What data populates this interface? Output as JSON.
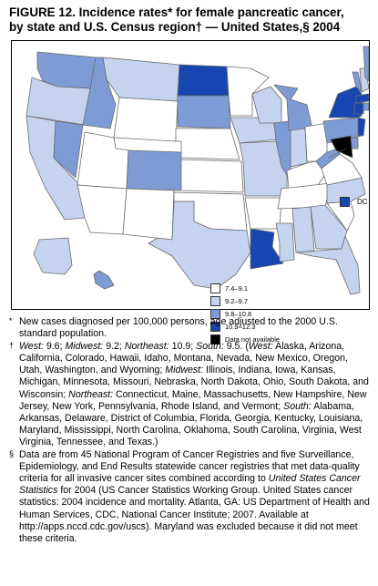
{
  "title": {
    "line1": "FIGURE 12. Incidence rates* for female pancreatic cancer,",
    "line2": "by state and U.S. Census region† — United States,§ 2004"
  },
  "legend": {
    "items": [
      {
        "label": "7.4–9.1",
        "color": "#ffffff"
      },
      {
        "label": "9.2–9.7",
        "color": "#c6d3ee"
      },
      {
        "label": "9.8–10.8",
        "color": "#7f9bd6"
      },
      {
        "label": "10.9–12.3",
        "color": "#1746b0"
      },
      {
        "label": "Data not available",
        "color": "#000000"
      }
    ],
    "dc_label": "DC"
  },
  "map_data": {
    "category_colors": [
      "#ffffff",
      "#c6d3ee",
      "#7f9bd6",
      "#1746b0",
      "#000000"
    ],
    "states": {
      "WA": 2,
      "OR": 1,
      "CA": 1,
      "NV": 2,
      "ID": 2,
      "MT": 1,
      "WY": 0,
      "UT": 0,
      "AZ": 0,
      "CO": 2,
      "NM": 0,
      "ND": 3,
      "SD": 2,
      "NE": 0,
      "KS": 0,
      "OK": 0,
      "TX": 1,
      "MN": 0,
      "IA": 1,
      "MO": 1,
      "AR": 0,
      "LA": 3,
      "WI": 1,
      "IL": 2,
      "MS": 1,
      "MI": 2,
      "IN": 1,
      "OH": 0,
      "KY": 0,
      "TN": 0,
      "AL": 1,
      "GA": 1,
      "FL": 1,
      "SC": 0,
      "NC": 1,
      "VA": 0,
      "WV": 2,
      "PA": 2,
      "NY": 3,
      "VT": 2,
      "NH": 1,
      "ME": 2,
      "MA": 3,
      "RI": 2,
      "CT": 3,
      "NJ": 3,
      "DE": 2,
      "MD": 4,
      "AK": 1,
      "HI": 2,
      "DC": 3
    }
  },
  "notes": [
    {
      "marker": "*",
      "parts": [
        {
          "text": "New cases diagnosed per 100,000 persons, age adjusted to the 2000 U.S. standard population."
        }
      ]
    },
    {
      "marker": "†",
      "parts": [
        {
          "text": "West:",
          "italic": true
        },
        {
          "text": " 9.6; "
        },
        {
          "text": "Midwest:",
          "italic": true
        },
        {
          "text": " 9.2; "
        },
        {
          "text": "Northeast:",
          "italic": true
        },
        {
          "text": " 10.9; "
        },
        {
          "text": "South:",
          "italic": true
        },
        {
          "text": " 9.5. ("
        },
        {
          "text": "West:",
          "italic": true
        },
        {
          "text": " Alaska, Arizona, California, Colorado, Hawaii, Idaho, Montana, Nevada, New Mexico, Oregon, Utah, Washington, and Wyoming; "
        },
        {
          "text": "Midwest:",
          "italic": true
        },
        {
          "text": " Illinois, Indiana, Iowa, Kansas, Michigan, Minnesota, Missouri, Nebraska, North Dakota, Ohio, South Dakota, and Wisconsin; "
        },
        {
          "text": "Northeast:",
          "italic": true
        },
        {
          "text": " Connecticut, Maine, Massachusetts, New Hampshire, New Jersey, New York, Pennsylvania, Rhode Island, and Vermont; "
        },
        {
          "text": "South:",
          "italic": true
        },
        {
          "text": " Alabama, Arkansas, Delaware, District of Columbia, Florida, Georgia, Kentucky, Louisiana, Maryland, Mississippi, North Carolina, Oklahoma, South Carolina, Virginia, West Virginia, Tennessee, and Texas.)"
        }
      ]
    },
    {
      "marker": "§",
      "parts": [
        {
          "text": "Data are from 45 National Program of Cancer Registries and five Surveillance, Epidemiology, and End Results statewide cancer registries that met data-quality criteria for all invasive cancer sites combined according to "
        },
        {
          "text": "United States Cancer Statistics",
          "italic": true
        },
        {
          "text": " for 2004 (US Cancer Statistics Working Group. United States cancer statistics: 2004 incidence and mortality. Atlanta, GA: US Department of Health and Human Services, CDC, National Cancer Institute; 2007. Available at http://apps.nccd.cdc.gov/uscs). Maryland was excluded because it did not meet these criteria."
        }
      ]
    }
  ]
}
